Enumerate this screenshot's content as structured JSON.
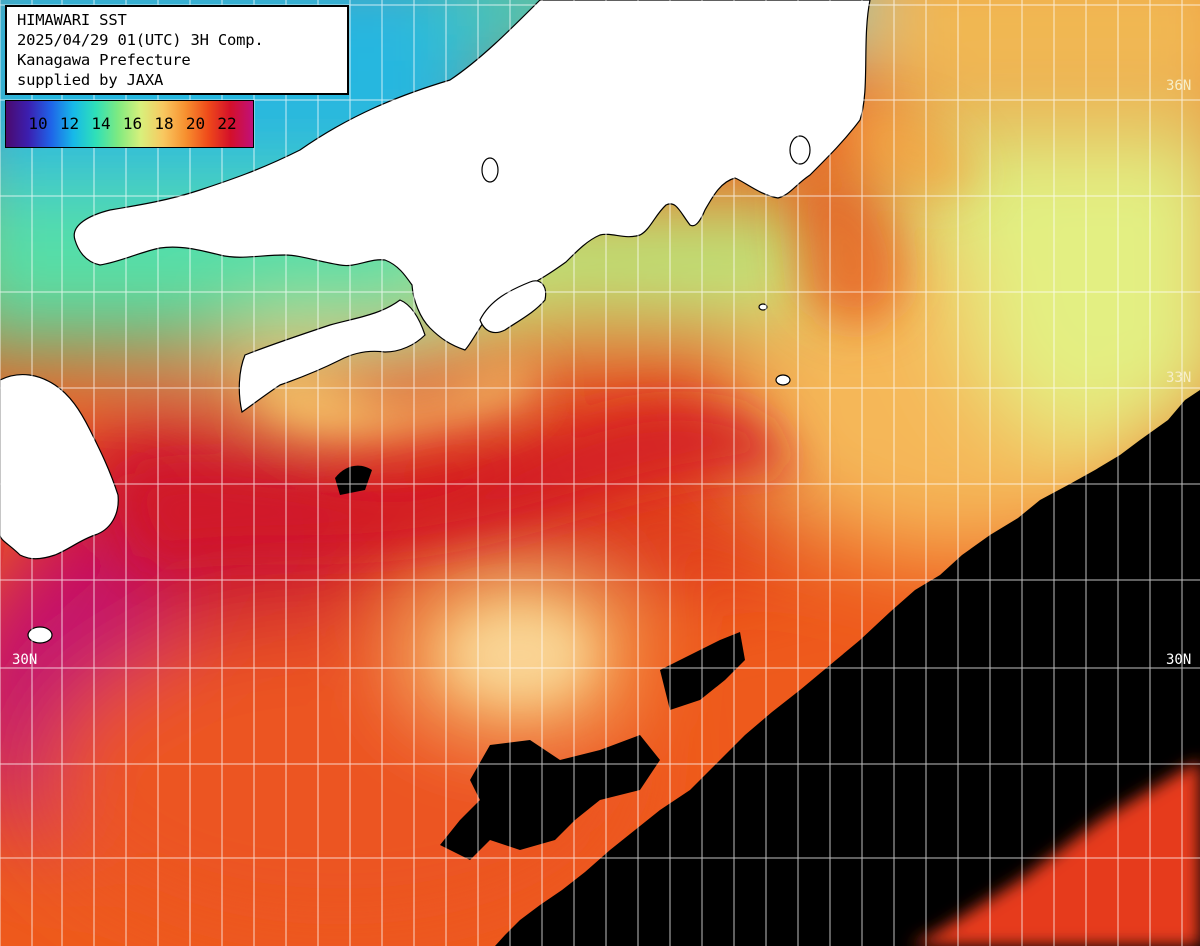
{
  "title_lines": [
    "HIMAWARI SST",
    "2025/04/29 01(UTC) 3H Comp.",
    "Kanagawa Prefecture",
    "supplied by JAXA"
  ],
  "legend": {
    "ticks": [
      "10",
      "12",
      "14",
      "16",
      "18",
      "20",
      "22"
    ],
    "colors": [
      "#4b0a6e",
      "#3b1fb0",
      "#1f63e8",
      "#17b9e8",
      "#2fe0b8",
      "#7fea80",
      "#d8f07c",
      "#f8c860",
      "#f7902f",
      "#ef4a1a",
      "#d4102a",
      "#c0107a"
    ]
  },
  "lat_labels": {
    "left_30": "30N",
    "right_30": "30N",
    "right_33": "33N",
    "right_36": "36N"
  },
  "colors": {
    "land": "#ffffff",
    "no_data": "#000000",
    "grid": "#ffffff"
  }
}
